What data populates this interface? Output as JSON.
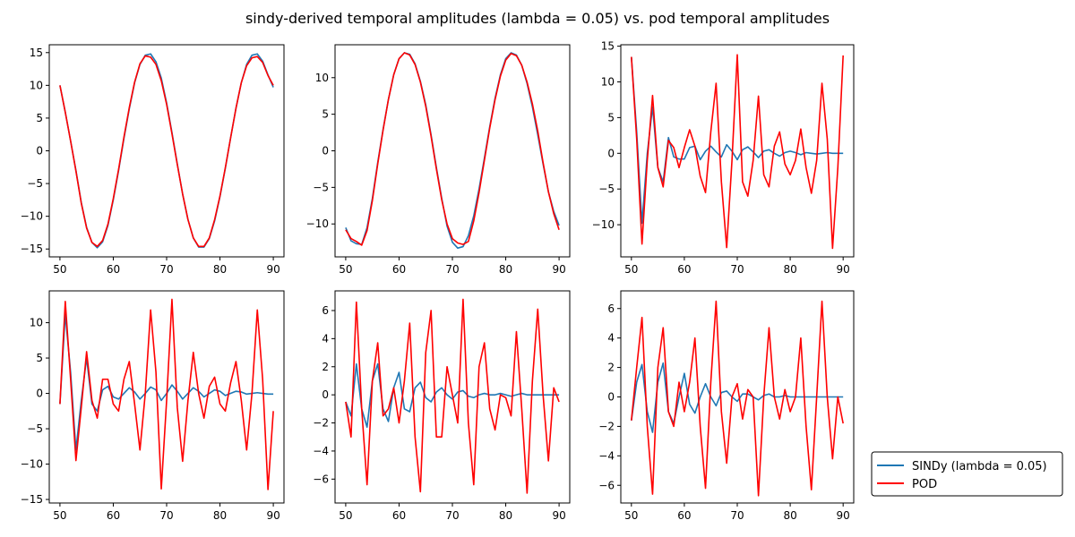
{
  "figure": {
    "title": "sindy-derived temporal amplitudes (lambda = 0.05) vs. pod temporal amplitudes"
  },
  "legend": {
    "placement": "lower-right outside",
    "entries": [
      {
        "label": "SINDy (lambda = 0.05)",
        "color": "#1f77b4"
      },
      {
        "label": "POD",
        "color": "#ff0000"
      }
    ]
  },
  "chart_data": [
    {
      "type": "line",
      "panel": "top-left",
      "xlim": [
        48,
        92
      ],
      "ylim": [
        -16.2,
        16.2
      ],
      "xticks": [
        50,
        60,
        70,
        80,
        90
      ],
      "yticks": [
        -15,
        -10,
        -5,
        0,
        5,
        10,
        15
      ],
      "x": [
        50,
        51,
        52,
        53,
        54,
        55,
        56,
        57,
        58,
        59,
        60,
        61,
        62,
        63,
        64,
        65,
        66,
        67,
        68,
        69,
        70,
        71,
        72,
        73,
        74,
        75,
        76,
        77,
        78,
        79,
        80,
        81,
        82,
        83,
        84,
        85,
        86,
        87,
        88,
        89,
        90
      ],
      "series": [
        {
          "name": "SINDy (lambda = 0.05)",
          "color": "#1f77b4",
          "values": [
            10,
            5.9,
            1.5,
            -3,
            -7.9,
            -11.7,
            -14,
            -14.8,
            -13.9,
            -11.4,
            -7.5,
            -3,
            1.9,
            6.4,
            10.4,
            13.2,
            14.6,
            14.8,
            13.6,
            11.1,
            7.3,
            2.8,
            -2,
            -6.6,
            -10.5,
            -13.3,
            -14.7,
            -14.7,
            -13.4,
            -10.7,
            -7,
            -2.7,
            2,
            6.5,
            10.4,
            13.2,
            14.6,
            14.8,
            13.7,
            11.6,
            9.7
          ]
        },
        {
          "name": "POD",
          "color": "#ff0000",
          "values": [
            10,
            5.9,
            1.5,
            -3.1,
            -8,
            -11.8,
            -14,
            -14.6,
            -13.7,
            -11.2,
            -7.3,
            -2.8,
            2.1,
            6.6,
            10.5,
            13.3,
            14.5,
            14.3,
            13.2,
            10.7,
            7.1,
            2.6,
            -2.1,
            -6.6,
            -10.5,
            -13.3,
            -14.6,
            -14.6,
            -13.3,
            -10.5,
            -6.9,
            -2.6,
            2,
            6.5,
            10.4,
            13,
            14.2,
            14.4,
            13.5,
            11.5,
            10
          ]
        }
      ]
    },
    {
      "type": "line",
      "panel": "top-middle",
      "xlim": [
        48,
        92
      ],
      "ylim": [
        -14.5,
        14.5
      ],
      "xticks": [
        50,
        60,
        70,
        80,
        90
      ],
      "yticks": [
        -10,
        -5,
        0,
        5,
        10
      ],
      "x": [
        50,
        51,
        52,
        53,
        54,
        55,
        56,
        57,
        58,
        59,
        60,
        61,
        62,
        63,
        64,
        65,
        66,
        67,
        68,
        69,
        70,
        71,
        72,
        73,
        74,
        75,
        76,
        77,
        78,
        79,
        80,
        81,
        82,
        83,
        84,
        85,
        86,
        87,
        88,
        89,
        90
      ],
      "series": [
        {
          "name": "SINDy (lambda = 0.05)",
          "color": "#1f77b4",
          "values": [
            -10.5,
            -12.3,
            -12.7,
            -12.8,
            -10.5,
            -6.5,
            -1.6,
            2.9,
            7,
            10.4,
            12.6,
            13.4,
            13.2,
            11.9,
            9.5,
            6.3,
            2.2,
            -2.3,
            -6.5,
            -10.3,
            -12.5,
            -13.3,
            -13.1,
            -11.6,
            -8.9,
            -5.2,
            -1,
            3.3,
            7.2,
            10.4,
            12.6,
            13.4,
            13.1,
            11.7,
            9.2,
            6,
            2.2,
            -1.8,
            -5.6,
            -8.3,
            -10.2
          ]
        },
        {
          "name": "POD",
          "color": "#ff0000",
          "values": [
            -10.8,
            -12,
            -12.4,
            -12.9,
            -10.9,
            -6.8,
            -1.8,
            2.8,
            7,
            10.4,
            12.6,
            13.4,
            13.1,
            11.8,
            9.4,
            6.1,
            2,
            -2.5,
            -6.7,
            -10,
            -12,
            -12.6,
            -12.8,
            -12.4,
            -9.6,
            -5.7,
            -1.3,
            3.1,
            7,
            10.2,
            12.4,
            13.3,
            13,
            11.7,
            9.4,
            6.4,
            2.7,
            -1.6,
            -5.6,
            -8.6,
            -10.8
          ]
        }
      ]
    },
    {
      "type": "line",
      "panel": "top-right",
      "xlim": [
        48,
        92
      ],
      "ylim": [
        -14.5,
        15.2
      ],
      "xticks": [
        50,
        60,
        70,
        80,
        90
      ],
      "yticks": [
        -10,
        -5,
        0,
        5,
        10,
        15
      ],
      "x": [
        50,
        51,
        52,
        53,
        54,
        55,
        56,
        57,
        58,
        59,
        60,
        61,
        62,
        63,
        64,
        65,
        66,
        67,
        68,
        69,
        70,
        71,
        72,
        73,
        74,
        75,
        76,
        77,
        78,
        79,
        80,
        81,
        82,
        83,
        84,
        85,
        86,
        87,
        88,
        89,
        90
      ],
      "series": [
        {
          "name": "SINDy (lambda = 0.05)",
          "color": "#1f77b4",
          "values": [
            13.5,
            3,
            -9.8,
            0,
            6.5,
            -2,
            -4,
            2.2,
            -0.5,
            -0.8,
            -0.8,
            0.8,
            1,
            -0.9,
            0.3,
            1,
            0.2,
            -0.5,
            1.2,
            0.3,
            -0.9,
            0.5,
            0.9,
            0.2,
            -0.6,
            0.3,
            0.5,
            0,
            -0.4,
            0.1,
            0.3,
            0.1,
            -0.2,
            0.1,
            0,
            -0.1,
            0,
            0.1,
            0,
            0,
            0
          ]
        },
        {
          "name": "POD",
          "color": "#ff0000",
          "values": [
            13.5,
            2,
            -12.7,
            -1,
            8.1,
            -2,
            -4.7,
            1.8,
            0.8,
            -2,
            0.8,
            3.3,
            1,
            -3.2,
            -5.5,
            3,
            9.8,
            -4,
            -13.2,
            -1,
            13.8,
            -4,
            -6,
            -1,
            8,
            -3,
            -4.7,
            1,
            3,
            -1.5,
            -3,
            -1,
            3.4,
            -2,
            -5.6,
            -1,
            9.8,
            2,
            -13.3,
            -2,
            13.7
          ]
        }
      ]
    },
    {
      "type": "line",
      "panel": "bottom-left",
      "xlim": [
        48,
        92
      ],
      "ylim": [
        -15.5,
        14.5
      ],
      "xticks": [
        50,
        60,
        70,
        80,
        90
      ],
      "yticks": [
        -15,
        -10,
        -5,
        0,
        5,
        10
      ],
      "x": [
        50,
        51,
        52,
        53,
        54,
        55,
        56,
        57,
        58,
        59,
        60,
        61,
        62,
        63,
        64,
        65,
        66,
        67,
        68,
        69,
        70,
        71,
        72,
        73,
        74,
        75,
        76,
        77,
        78,
        79,
        80,
        81,
        82,
        83,
        84,
        85,
        86,
        87,
        88,
        89,
        90
      ],
      "series": [
        {
          "name": "SINDy (lambda = 0.05)",
          "color": "#1f77b4",
          "values": [
            -1.5,
            11.2,
            3,
            -8,
            -1,
            5,
            -1.5,
            -2.5,
            0.5,
            1,
            -0.5,
            -0.8,
            0,
            0.8,
            0.2,
            -0.8,
            0,
            0.9,
            0.5,
            -1,
            0,
            1.2,
            0.3,
            -0.8,
            0,
            0.8,
            0.3,
            -0.5,
            0,
            0.5,
            0.3,
            -0.3,
            0,
            0.3,
            0.2,
            -0.1,
            0,
            0.1,
            0,
            -0.1,
            -0.1
          ]
        },
        {
          "name": "POD",
          "color": "#ff0000",
          "values": [
            -1.5,
            13,
            2,
            -9.5,
            -2,
            5.9,
            -1,
            -3.5,
            2,
            2,
            -1.5,
            -2.5,
            2,
            4.5,
            -1.5,
            -8,
            0,
            11.8,
            3,
            -13.5,
            -1,
            13.3,
            -2,
            -9.6,
            -1,
            5.8,
            0,
            -3.5,
            1,
            2.3,
            -1.5,
            -2.5,
            1.5,
            4.5,
            -1,
            -8,
            0,
            11.8,
            2,
            -13.6,
            -2.5
          ]
        }
      ]
    },
    {
      "type": "line",
      "panel": "bottom-middle",
      "xlim": [
        48,
        92
      ],
      "ylim": [
        -7.7,
        7.4
      ],
      "xticks": [
        50,
        60,
        70,
        80,
        90
      ],
      "yticks": [
        -6,
        -4,
        -2,
        0,
        2,
        4,
        6
      ],
      "x": [
        50,
        51,
        52,
        53,
        54,
        55,
        56,
        57,
        58,
        59,
        60,
        61,
        62,
        63,
        64,
        65,
        66,
        67,
        68,
        69,
        70,
        71,
        72,
        73,
        74,
        75,
        76,
        77,
        78,
        79,
        80,
        81,
        82,
        83,
        84,
        85,
        86,
        87,
        88,
        89,
        90
      ],
      "series": [
        {
          "name": "SINDy (lambda = 0.05)",
          "color": "#1f77b4",
          "values": [
            -0.5,
            -1.5,
            2.2,
            -1,
            -2.3,
            1,
            2.2,
            -1,
            -1.9,
            0.5,
            1.6,
            -1,
            -1.2,
            0.5,
            0.9,
            -0.2,
            -0.5,
            0.2,
            0.5,
            0,
            -0.3,
            0.2,
            0.3,
            -0.1,
            -0.2,
            0,
            0.1,
            0,
            0,
            0.1,
            0,
            -0.1,
            0,
            0.1,
            0,
            0,
            0,
            0,
            0,
            0,
            0
          ]
        },
        {
          "name": "POD",
          "color": "#ff0000",
          "values": [
            -0.5,
            -3,
            6.6,
            -1,
            -6.4,
            1,
            3.7,
            -1.5,
            -1,
            0.5,
            -2,
            1,
            5.1,
            -3,
            -6.9,
            3,
            6,
            -3,
            -3,
            2,
            0,
            -2,
            6.8,
            -2,
            -6.4,
            2,
            3.7,
            -1,
            -2.5,
            0,
            -0.2,
            -1.5,
            4.5,
            -1,
            -7,
            1,
            6.1,
            0,
            -4.7,
            0.5,
            -0.5
          ]
        }
      ]
    },
    {
      "type": "line",
      "panel": "bottom-right",
      "xlim": [
        48,
        92
      ],
      "ylim": [
        -7.2,
        7.2
      ],
      "xticks": [
        50,
        60,
        70,
        80,
        90
      ],
      "yticks": [
        -6,
        -4,
        -2,
        0,
        2,
        4,
        6
      ],
      "x": [
        50,
        51,
        52,
        53,
        54,
        55,
        56,
        57,
        58,
        59,
        60,
        61,
        62,
        63,
        64,
        65,
        66,
        67,
        68,
        69,
        70,
        71,
        72,
        73,
        74,
        75,
        76,
        77,
        78,
        79,
        80,
        81,
        82,
        83,
        84,
        85,
        86,
        87,
        88,
        89,
        90
      ],
      "series": [
        {
          "name": "SINDy (lambda = 0.05)",
          "color": "#1f77b4",
          "values": [
            -1.6,
            1,
            2.2,
            -1,
            -2.4,
            1,
            2.3,
            -1,
            -1.8,
            0,
            1.6,
            -0.5,
            -1.1,
            0,
            0.9,
            0,
            -0.6,
            0.3,
            0.4,
            0,
            -0.3,
            0.2,
            0.2,
            0,
            -0.2,
            0.1,
            0.2,
            0,
            0,
            0.1,
            0,
            0,
            0,
            0,
            0,
            0,
            0,
            0,
            0,
            0,
            0
          ]
        },
        {
          "name": "POD",
          "color": "#ff0000",
          "values": [
            -1.6,
            2,
            5.4,
            -2,
            -6.6,
            2,
            4.7,
            -1,
            -2,
            1,
            -1,
            1,
            4,
            -2,
            -6.2,
            1,
            6.5,
            -1,
            -4.5,
            0,
            0.9,
            -1.5,
            0.5,
            0,
            -6.7,
            0,
            4.7,
            0,
            -1.5,
            0.5,
            -1,
            0,
            4,
            -2,
            -6.3,
            0,
            6.5,
            0,
            -4.2,
            0,
            -1.8
          ]
        }
      ]
    }
  ]
}
